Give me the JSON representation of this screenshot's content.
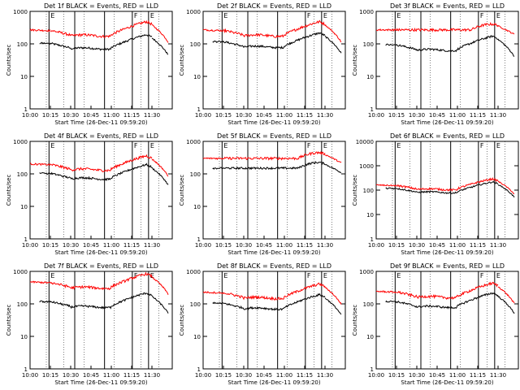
{
  "page": {
    "background": "#ffffff",
    "series_colors": {
      "events": "#000000",
      "lld": "#ff0000"
    }
  },
  "common": {
    "ylabel": "Counts/sec",
    "xlabel": "Start Time (26-Dec-11 09:59:20)",
    "xticks_normal": [
      "10:00",
      "10:15",
      "10:30",
      "10:45",
      "11:00",
      "11:15",
      "11:30"
    ],
    "xticks_alt": [
      "10:00",
      "10:15",
      "10:30",
      "10:45",
      "11:00",
      "11:15",
      "11:30"
    ],
    "vline_labels": [
      "E",
      "F",
      "E"
    ],
    "vline_times_min": [
      14,
      33,
      55,
      75.5,
      87.5
    ]
  },
  "chart_data": [
    {
      "type": "line",
      "title": "Det 1f BLACK = Events, RED = LLD",
      "yticks": [
        "1",
        "10",
        "100",
        "1000"
      ],
      "ylim": [
        1,
        1000
      ],
      "xlim_min": [
        0,
        105
      ],
      "series": [
        {
          "name": "Events",
          "color": "#000000",
          "profile": "p1",
          "level": 80
        },
        {
          "name": "LLD",
          "color": "#ff0000",
          "profile": "p1",
          "level": 200
        }
      ]
    },
    {
      "type": "line",
      "title": "Det 2f BLACK = Events, RED = LLD",
      "yticks": [
        "1",
        "10",
        "100",
        "1000"
      ],
      "ylim": [
        1,
        1000
      ],
      "xlim_min": [
        0,
        105
      ],
      "series": [
        {
          "name": "Events",
          "color": "#000000",
          "profile": "p2",
          "level": 90
        },
        {
          "name": "LLD",
          "color": "#ff0000",
          "profile": "p2",
          "level": 200
        }
      ]
    },
    {
      "type": "line",
      "title": "Det 3f BLACK = Events, RED = LLD",
      "yticks": [
        "1",
        "10",
        "100",
        "1000"
      ],
      "ylim": [
        1,
        1000
      ],
      "xlim_min": [
        0,
        105
      ],
      "series": [
        {
          "name": "Events",
          "color": "#000000",
          "profile": "p3",
          "level": 80
        },
        {
          "name": "LLD",
          "color": "#ff0000",
          "profile": "flat",
          "level": 270
        }
      ]
    },
    {
      "type": "line",
      "title": "Det 4f BLACK = Events, RED = LLD",
      "yticks": [
        "1",
        "10",
        "100",
        "1000"
      ],
      "ylim": [
        1,
        1000
      ],
      "xlim_min": [
        0,
        105
      ],
      "series": [
        {
          "name": "Events",
          "color": "#000000",
          "profile": "p1",
          "level": 80
        },
        {
          "name": "LLD",
          "color": "#ff0000",
          "profile": "p1",
          "level": 150
        }
      ]
    },
    {
      "type": "line",
      "title": "Det 5f BLACK = Events, RED = LLD",
      "yticks": [
        "1",
        "10",
        "100",
        "1000"
      ],
      "ylim": [
        1,
        1000
      ],
      "xlim_min": [
        0,
        105
      ],
      "series": [
        {
          "name": "Events",
          "color": "#000000",
          "profile": "flat",
          "level": 150
        },
        {
          "name": "LLD",
          "color": "#ff0000",
          "profile": "flat",
          "level": 300
        }
      ]
    },
    {
      "type": "line",
      "title": "Det 6f BLACK = Events, RED = LLD",
      "yticks": [
        "1",
        "10",
        "100",
        "1000",
        "10000"
      ],
      "ylim": [
        1,
        10000
      ],
      "xlim_min": [
        0,
        105
      ],
      "series": [
        {
          "name": "Events",
          "color": "#000000",
          "profile": "p2",
          "level": 90
        },
        {
          "name": "LLD",
          "color": "#ff0000",
          "profile": "p2",
          "level": 120
        }
      ]
    },
    {
      "type": "line",
      "title": "Det 7f BLACK = Events, RED = LLD",
      "yticks": [
        "1",
        "10",
        "100",
        "1000"
      ],
      "ylim": [
        1,
        1000
      ],
      "xlim_min": [
        0,
        105
      ],
      "series": [
        {
          "name": "Events",
          "color": "#000000",
          "profile": "p1",
          "level": 90
        },
        {
          "name": "LLD",
          "color": "#ff0000",
          "profile": "p1",
          "level": 350
        }
      ]
    },
    {
      "type": "line",
      "title": "Det 8f BLACK = Events, RED = LLD",
      "yticks": [
        "1",
        "10",
        "100",
        "1000"
      ],
      "ylim": [
        1,
        1000
      ],
      "xlim_min": [
        0,
        105
      ],
      "series": [
        {
          "name": "Events",
          "color": "#000000",
          "profile": "p2",
          "level": 80
        },
        {
          "name": "LLD",
          "color": "#ff0000",
          "profile": "p2",
          "level": 170
        }
      ]
    },
    {
      "type": "line",
      "title": "Det 9f BLACK = Events, RED = LLD",
      "yticks": [
        "1",
        "10",
        "100",
        "1000"
      ],
      "ylim": [
        1,
        1000
      ],
      "xlim_min": [
        0,
        105
      ],
      "series": [
        {
          "name": "Events",
          "color": "#000000",
          "profile": "p2",
          "level": 90
        },
        {
          "name": "LLD",
          "color": "#ff0000",
          "profile": "p2",
          "level": 180
        }
      ]
    }
  ]
}
